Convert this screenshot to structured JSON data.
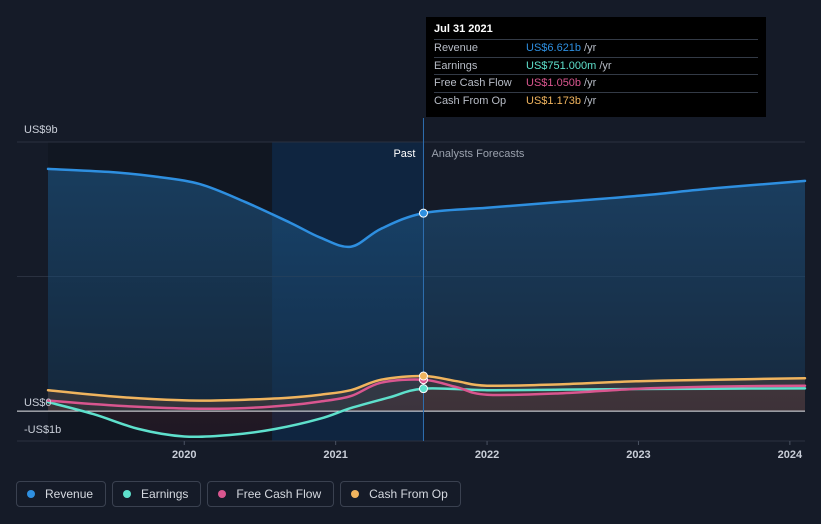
{
  "chart_data": {
    "type": "line",
    "y_axis": {
      "unit": "US$ billions",
      "range": [
        -1,
        9
      ],
      "tick_labels": [
        {
          "value": 9,
          "label": "US$9b"
        },
        {
          "value": 0,
          "label": "US$0"
        },
        {
          "value": -1,
          "label": "-US$1b"
        }
      ]
    },
    "x_axis": {
      "range": [
        2019.1,
        2024.1
      ],
      "ticks": [
        {
          "value": 2020,
          "label": "2020"
        },
        {
          "value": 2021,
          "label": "2021"
        },
        {
          "value": 2022,
          "label": "2022"
        },
        {
          "value": 2023,
          "label": "2023"
        },
        {
          "value": 2024,
          "label": "2024"
        }
      ]
    },
    "divider": {
      "x": 2021.58,
      "past_label": "Past",
      "forecast_label": "Analysts Forecasts"
    },
    "highlight_band": [
      2020.58,
      2021.58
    ],
    "series": [
      {
        "key": "revenue",
        "name": "Revenue",
        "color": "#2e8fe0",
        "points": [
          [
            2019.1,
            8.1
          ],
          [
            2019.5,
            8.0
          ],
          [
            2019.8,
            7.85
          ],
          [
            2020.1,
            7.6
          ],
          [
            2020.4,
            7.0
          ],
          [
            2020.7,
            6.3
          ],
          [
            2020.9,
            5.8
          ],
          [
            2021.1,
            5.5
          ],
          [
            2021.3,
            6.1
          ],
          [
            2021.58,
            6.621
          ],
          [
            2022.0,
            6.8
          ],
          [
            2022.5,
            7.0
          ],
          [
            2023.0,
            7.2
          ],
          [
            2023.5,
            7.45
          ],
          [
            2024.1,
            7.7
          ]
        ]
      },
      {
        "key": "earnings",
        "name": "Earnings",
        "color": "#5ee0cc",
        "points": [
          [
            2019.1,
            0.3
          ],
          [
            2019.4,
            -0.1
          ],
          [
            2019.7,
            -0.6
          ],
          [
            2020.0,
            -0.85
          ],
          [
            2020.3,
            -0.8
          ],
          [
            2020.6,
            -0.6
          ],
          [
            2020.9,
            -0.25
          ],
          [
            2021.1,
            0.1
          ],
          [
            2021.35,
            0.45
          ],
          [
            2021.58,
            0.751
          ],
          [
            2022.0,
            0.7
          ],
          [
            2022.5,
            0.72
          ],
          [
            2023.0,
            0.74
          ],
          [
            2023.5,
            0.75
          ],
          [
            2024.1,
            0.76
          ]
        ]
      },
      {
        "key": "fcf",
        "name": "Free Cash Flow",
        "color": "#d9568f",
        "points": [
          [
            2019.1,
            0.35
          ],
          [
            2019.5,
            0.2
          ],
          [
            2019.8,
            0.12
          ],
          [
            2020.1,
            0.08
          ],
          [
            2020.4,
            0.1
          ],
          [
            2020.7,
            0.2
          ],
          [
            2020.9,
            0.32
          ],
          [
            2021.1,
            0.5
          ],
          [
            2021.3,
            0.95
          ],
          [
            2021.58,
            1.05
          ],
          [
            2021.8,
            0.8
          ],
          [
            2022.0,
            0.55
          ],
          [
            2022.5,
            0.6
          ],
          [
            2023.0,
            0.75
          ],
          [
            2023.5,
            0.82
          ],
          [
            2024.1,
            0.85
          ]
        ]
      },
      {
        "key": "cfo",
        "name": "Cash From Op",
        "color": "#f0b45e",
        "points": [
          [
            2019.1,
            0.7
          ],
          [
            2019.5,
            0.5
          ],
          [
            2019.8,
            0.4
          ],
          [
            2020.1,
            0.35
          ],
          [
            2020.4,
            0.38
          ],
          [
            2020.7,
            0.45
          ],
          [
            2020.9,
            0.55
          ],
          [
            2021.1,
            0.7
          ],
          [
            2021.3,
            1.05
          ],
          [
            2021.58,
            1.173
          ],
          [
            2021.8,
            1.0
          ],
          [
            2022.0,
            0.85
          ],
          [
            2022.5,
            0.9
          ],
          [
            2023.0,
            1.0
          ],
          [
            2023.5,
            1.05
          ],
          [
            2024.1,
            1.1
          ]
        ]
      }
    ],
    "markers": [
      {
        "series": "revenue",
        "x": 2021.58,
        "y": 6.621
      },
      {
        "series": "earnings",
        "x": 2021.58,
        "y": 0.751
      },
      {
        "series": "fcf",
        "x": 2021.58,
        "y": 1.05
      },
      {
        "series": "cfo",
        "x": 2021.58,
        "y": 1.173
      }
    ]
  },
  "tooltip": {
    "date": "Jul 31 2021",
    "rows": [
      {
        "label": "Revenue",
        "value": "US$6.621b",
        "unit": "/yr",
        "color": "#2e8fe0"
      },
      {
        "label": "Earnings",
        "value": "US$751.000m",
        "unit": "/yr",
        "color": "#5ee0cc"
      },
      {
        "label": "Free Cash Flow",
        "value": "US$1.050b",
        "unit": "/yr",
        "color": "#d9568f"
      },
      {
        "label": "Cash From Op",
        "value": "US$1.173b",
        "unit": "/yr",
        "color": "#f0b45e"
      }
    ]
  },
  "legend": [
    {
      "label": "Revenue",
      "color": "#2e8fe0"
    },
    {
      "label": "Earnings",
      "color": "#5ee0cc"
    },
    {
      "label": "Free Cash Flow",
      "color": "#d9568f"
    },
    {
      "label": "Cash From Op",
      "color": "#f0b45e"
    }
  ]
}
